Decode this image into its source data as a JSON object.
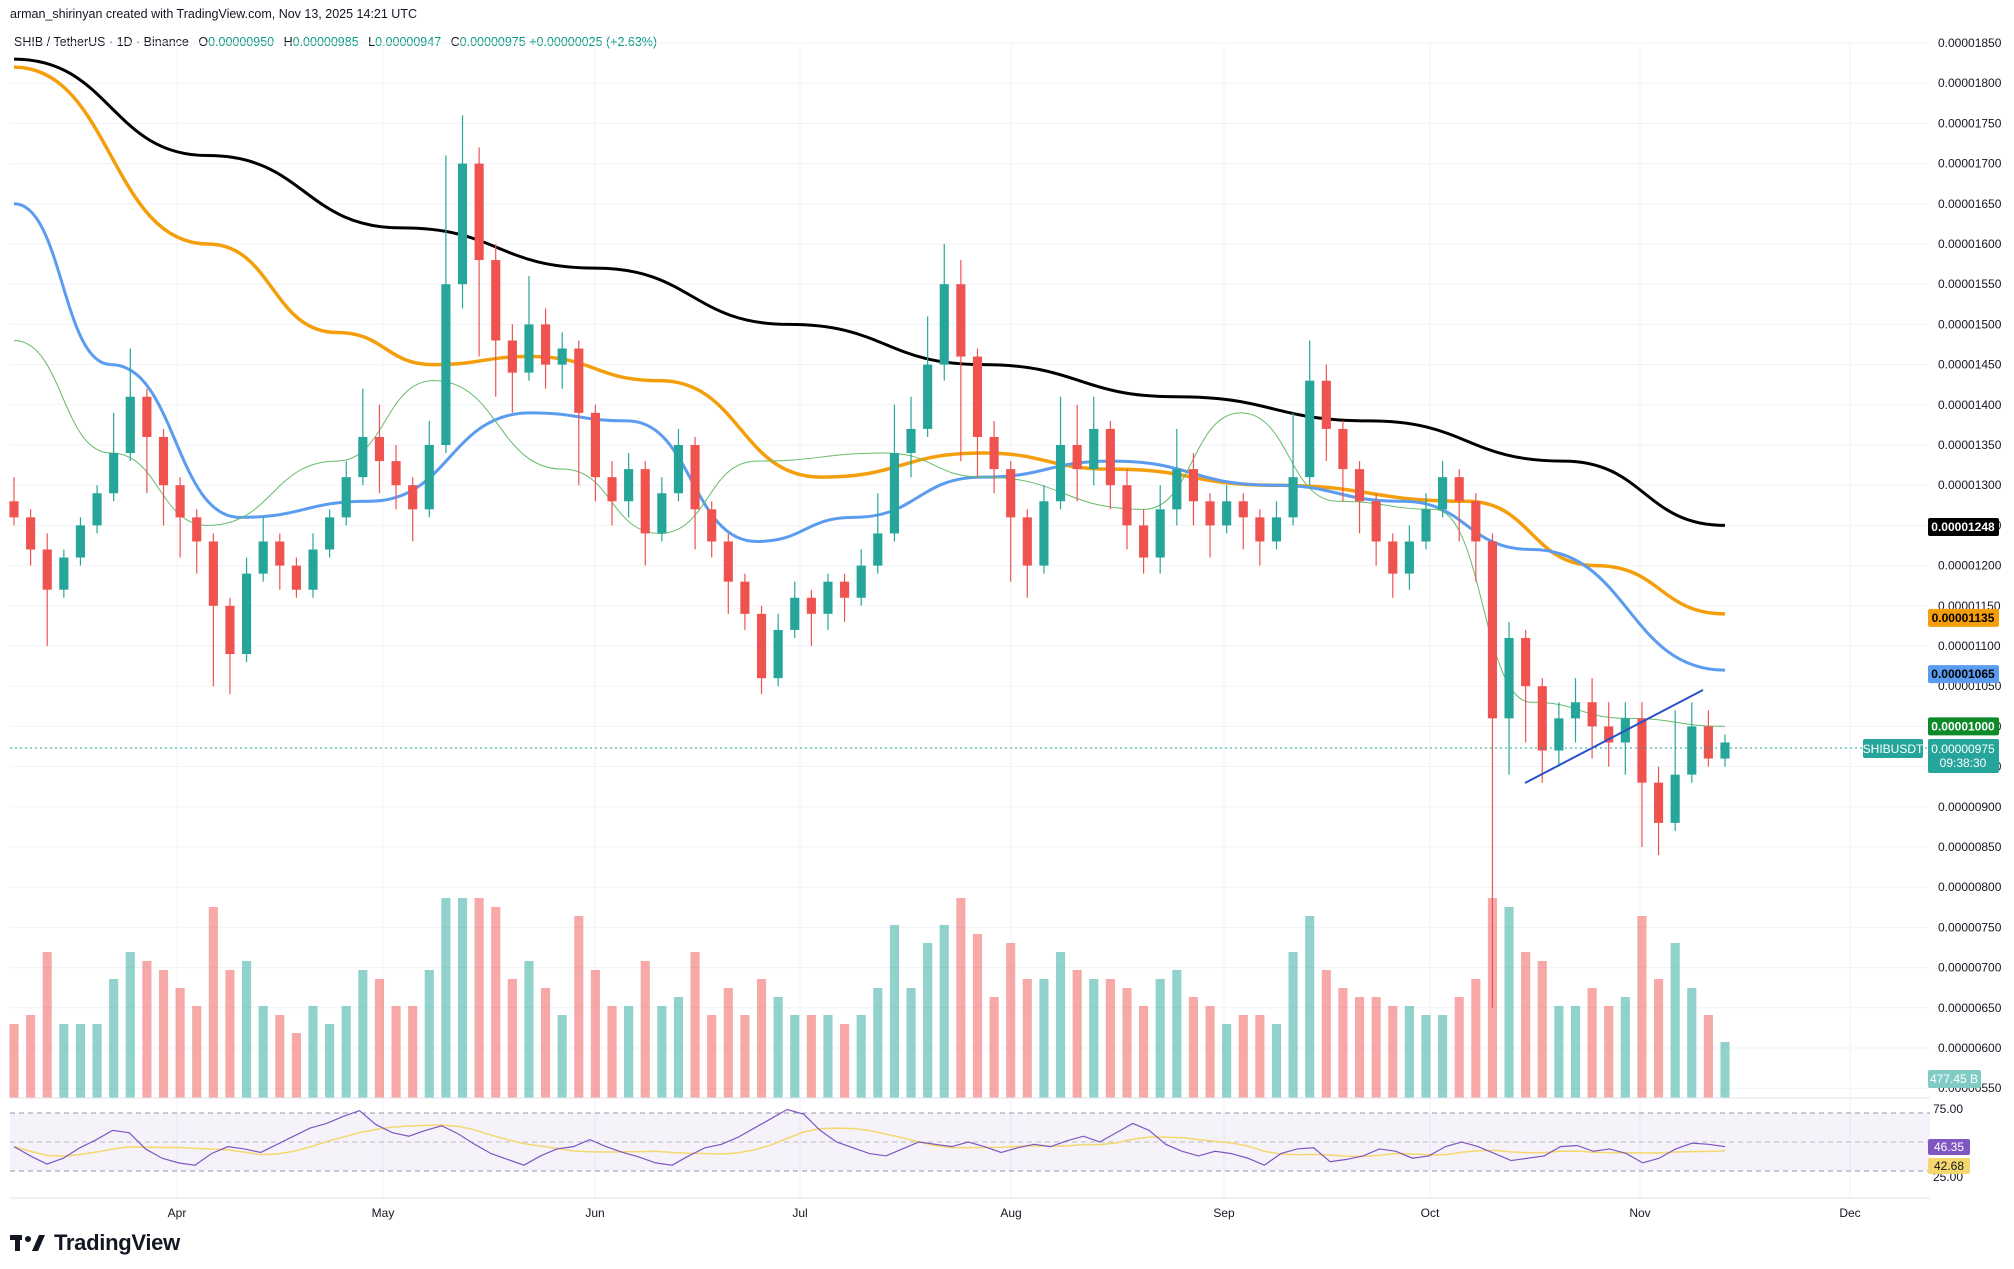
{
  "header": {
    "author": "arman_shirinyan",
    "created_text": "created with TradingView.com,",
    "timestamp": "Nov 13, 2025 14:21 UTC"
  },
  "legend": {
    "symbol": "SHIB / TetherUS · 1D · Binance",
    "open_label": "O",
    "open": "0.00000950",
    "high_label": "H",
    "high": "0.00000985",
    "low_label": "L",
    "low": "0.00000947",
    "close_label": "C",
    "close": "0.00000975",
    "change": "+0.00000025 (+2.63%)"
  },
  "price_labels": [
    {
      "value": "0.00001248",
      "color": "#000000",
      "text_color": "#ffffff"
    },
    {
      "value": "0.00001135",
      "color": "#f59e0b",
      "text_color": "#000000"
    },
    {
      "value": "0.00001065",
      "color": "#5b9cf0",
      "text_color": "#000000"
    },
    {
      "value": "0.00001000",
      "color": "#0d8a28",
      "text_color": "#ffffff"
    }
  ],
  "symbol_tag": "SHIBUSDT",
  "current_price": "0.00000975",
  "countdown": "09:38:30",
  "volume_label": "477.45 B",
  "rsi": {
    "value": "46.35",
    "ma": "42.68",
    "upper": "75.00",
    "lower": "25.00"
  },
  "brand": "TradingView",
  "colors": {
    "up": "#26a69a",
    "down": "#ef5350",
    "ma200": "#000000",
    "ma100": "#f59e0b",
    "ma50": "#5b9cf0",
    "ma20": "#66bb6a",
    "rsi": "#7e57c2",
    "rsi_ma": "#f5d76e",
    "trendline": "#2950c8"
  },
  "chart_data": {
    "type": "candlestick",
    "yaxis_ticks": [
      "0.00001850",
      "0.00001800",
      "0.00001750",
      "0.00001700",
      "0.00001650",
      "0.00001600",
      "0.00001550",
      "0.00001500",
      "0.00001450",
      "0.00001400",
      "0.00001350",
      "0.00001300",
      "0.00001250",
      "0.00001200",
      "0.00001150",
      "0.00001100",
      "0.00001050",
      "0.00001000",
      "0.00000950",
      "0.00000900",
      "0.00000850",
      "0.00000800",
      "0.00000750",
      "0.00000700",
      "0.00000650",
      "0.00000600",
      "0.00000550"
    ],
    "xaxis_ticks": [
      "Apr",
      "May",
      "Jun",
      "Jul",
      "Aug",
      "Sep",
      "Oct",
      "Nov",
      "Dec"
    ],
    "ylim": [
      5.5e-06,
      1.86e-05
    ],
    "moving_averages": [
      {
        "color": "#000000",
        "points": [
          [
            0,
            1.83e-05
          ],
          [
            30,
            1.71e-05
          ],
          [
            60,
            1.62e-05
          ],
          [
            90,
            1.57e-05
          ],
          [
            120,
            1.5e-05
          ],
          [
            150,
            1.45e-05
          ],
          [
            180,
            1.41e-05
          ],
          [
            210,
            1.38e-05
          ],
          [
            240,
            1.33e-05
          ],
          [
            265,
            1.25e-05
          ]
        ]
      },
      {
        "color": "#f59e0b",
        "points": [
          [
            0,
            1.82e-05
          ],
          [
            30,
            1.6e-05
          ],
          [
            50,
            1.49e-05
          ],
          [
            65,
            1.45e-05
          ],
          [
            80,
            1.46e-05
          ],
          [
            100,
            1.43e-05
          ],
          [
            125,
            1.31e-05
          ],
          [
            150,
            1.34e-05
          ],
          [
            170,
            1.32e-05
          ],
          [
            195,
            1.3e-05
          ],
          [
            225,
            1.28e-05
          ],
          [
            245,
            1.2e-05
          ],
          [
            265,
            1.14e-05
          ]
        ]
      },
      {
        "color": "#5b9cf0",
        "points": [
          [
            0,
            1.65e-05
          ],
          [
            15,
            1.45e-05
          ],
          [
            35,
            1.26e-05
          ],
          [
            55,
            1.28e-05
          ],
          [
            80,
            1.39e-05
          ],
          [
            95,
            1.38e-05
          ],
          [
            115,
            1.23e-05
          ],
          [
            130,
            1.26e-05
          ],
          [
            150,
            1.31e-05
          ],
          [
            170,
            1.33e-05
          ],
          [
            195,
            1.3e-05
          ],
          [
            215,
            1.28e-05
          ],
          [
            235,
            1.22e-05
          ],
          [
            265,
            1.07e-05
          ]
        ]
      },
      {
        "color": "#66bb6a",
        "points": [
          [
            0,
            1.48e-05
          ],
          [
            15,
            1.34e-05
          ],
          [
            30,
            1.25e-05
          ],
          [
            50,
            1.33e-05
          ],
          [
            65,
            1.43e-05
          ],
          [
            85,
            1.32e-05
          ],
          [
            100,
            1.24e-05
          ],
          [
            115,
            1.33e-05
          ],
          [
            135,
            1.34e-05
          ],
          [
            150,
            1.31e-05
          ],
          [
            175,
            1.27e-05
          ],
          [
            190,
            1.39e-05
          ],
          [
            205,
            1.28e-05
          ],
          [
            220,
            1.27e-05
          ],
          [
            235,
            1.03e-05
          ],
          [
            250,
            1.01e-05
          ],
          [
            265,
            1e-05
          ]
        ]
      }
    ],
    "candles": [
      [
        1.28e-05,
        1.26e-05,
        1.31e-05,
        1.25e-05
      ],
      [
        1.26e-05,
        1.22e-05,
        1.27e-05,
        1.2e-05
      ],
      [
        1.22e-05,
        1.17e-05,
        1.24e-05,
        1.1e-05
      ],
      [
        1.17e-05,
        1.21e-05,
        1.22e-05,
        1.16e-05
      ],
      [
        1.21e-05,
        1.25e-05,
        1.26e-05,
        1.2e-05
      ],
      [
        1.25e-05,
        1.29e-05,
        1.3e-05,
        1.24e-05
      ],
      [
        1.29e-05,
        1.34e-05,
        1.39e-05,
        1.28e-05
      ],
      [
        1.34e-05,
        1.41e-05,
        1.47e-05,
        1.33e-05
      ],
      [
        1.41e-05,
        1.36e-05,
        1.42e-05,
        1.29e-05
      ],
      [
        1.36e-05,
        1.3e-05,
        1.37e-05,
        1.25e-05
      ],
      [
        1.3e-05,
        1.26e-05,
        1.31e-05,
        1.21e-05
      ],
      [
        1.26e-05,
        1.23e-05,
        1.27e-05,
        1.19e-05
      ],
      [
        1.23e-05,
        1.15e-05,
        1.24e-05,
        1.05e-05
      ],
      [
        1.15e-05,
        1.09e-05,
        1.16e-05,
        1.04e-05
      ],
      [
        1.09e-05,
        1.19e-05,
        1.21e-05,
        1.08e-05
      ],
      [
        1.19e-05,
        1.23e-05,
        1.26e-05,
        1.18e-05
      ],
      [
        1.23e-05,
        1.2e-05,
        1.24e-05,
        1.17e-05
      ],
      [
        1.2e-05,
        1.17e-05,
        1.21e-05,
        1.16e-05
      ],
      [
        1.17e-05,
        1.22e-05,
        1.24e-05,
        1.16e-05
      ],
      [
        1.22e-05,
        1.26e-05,
        1.27e-05,
        1.21e-05
      ],
      [
        1.26e-05,
        1.31e-05,
        1.33e-05,
        1.25e-05
      ],
      [
        1.31e-05,
        1.36e-05,
        1.42e-05,
        1.3e-05
      ],
      [
        1.36e-05,
        1.33e-05,
        1.4e-05,
        1.29e-05
      ],
      [
        1.33e-05,
        1.3e-05,
        1.35e-05,
        1.27e-05
      ],
      [
        1.3e-05,
        1.27e-05,
        1.31e-05,
        1.23e-05
      ],
      [
        1.27e-05,
        1.35e-05,
        1.38e-05,
        1.26e-05
      ],
      [
        1.35e-05,
        1.55e-05,
        1.71e-05,
        1.34e-05
      ],
      [
        1.55e-05,
        1.7e-05,
        1.76e-05,
        1.52e-05
      ],
      [
        1.7e-05,
        1.58e-05,
        1.72e-05,
        1.46e-05
      ],
      [
        1.58e-05,
        1.48e-05,
        1.6e-05,
        1.41e-05
      ],
      [
        1.48e-05,
        1.44e-05,
        1.5e-05,
        1.39e-05
      ],
      [
        1.44e-05,
        1.5e-05,
        1.56e-05,
        1.43e-05
      ],
      [
        1.5e-05,
        1.45e-05,
        1.52e-05,
        1.42e-05
      ],
      [
        1.45e-05,
        1.47e-05,
        1.49e-05,
        1.42e-05
      ],
      [
        1.47e-05,
        1.39e-05,
        1.48e-05,
        1.3e-05
      ],
      [
        1.39e-05,
        1.31e-05,
        1.4e-05,
        1.28e-05
      ],
      [
        1.31e-05,
        1.28e-05,
        1.33e-05,
        1.25e-05
      ],
      [
        1.28e-05,
        1.32e-05,
        1.34e-05,
        1.26e-05
      ],
      [
        1.32e-05,
        1.24e-05,
        1.33e-05,
        1.2e-05
      ],
      [
        1.24e-05,
        1.29e-05,
        1.31e-05,
        1.23e-05
      ],
      [
        1.29e-05,
        1.35e-05,
        1.37e-05,
        1.28e-05
      ],
      [
        1.35e-05,
        1.27e-05,
        1.36e-05,
        1.22e-05
      ],
      [
        1.27e-05,
        1.23e-05,
        1.28e-05,
        1.21e-05
      ],
      [
        1.23e-05,
        1.18e-05,
        1.24e-05,
        1.14e-05
      ],
      [
        1.18e-05,
        1.14e-05,
        1.19e-05,
        1.12e-05
      ],
      [
        1.14e-05,
        1.06e-05,
        1.15e-05,
        1.04e-05
      ],
      [
        1.06e-05,
        1.12e-05,
        1.14e-05,
        1.05e-05
      ],
      [
        1.12e-05,
        1.16e-05,
        1.18e-05,
        1.11e-05
      ],
      [
        1.16e-05,
        1.14e-05,
        1.17e-05,
        1.1e-05
      ],
      [
        1.14e-05,
        1.18e-05,
        1.19e-05,
        1.12e-05
      ],
      [
        1.18e-05,
        1.16e-05,
        1.19e-05,
        1.13e-05
      ],
      [
        1.16e-05,
        1.2e-05,
        1.22e-05,
        1.15e-05
      ],
      [
        1.2e-05,
        1.24e-05,
        1.29e-05,
        1.19e-05
      ],
      [
        1.24e-05,
        1.34e-05,
        1.4e-05,
        1.23e-05
      ],
      [
        1.34e-05,
        1.37e-05,
        1.41e-05,
        1.31e-05
      ],
      [
        1.37e-05,
        1.45e-05,
        1.51e-05,
        1.36e-05
      ],
      [
        1.45e-05,
        1.55e-05,
        1.6e-05,
        1.43e-05
      ],
      [
        1.55e-05,
        1.46e-05,
        1.58e-05,
        1.33e-05
      ],
      [
        1.46e-05,
        1.36e-05,
        1.47e-05,
        1.31e-05
      ],
      [
        1.36e-05,
        1.32e-05,
        1.38e-05,
        1.29e-05
      ],
      [
        1.32e-05,
        1.26e-05,
        1.33e-05,
        1.18e-05
      ],
      [
        1.26e-05,
        1.2e-05,
        1.27e-05,
        1.16e-05
      ],
      [
        1.2e-05,
        1.28e-05,
        1.3e-05,
        1.19e-05
      ],
      [
        1.28e-05,
        1.35e-05,
        1.41e-05,
        1.27e-05
      ],
      [
        1.35e-05,
        1.32e-05,
        1.4e-05,
        1.28e-05
      ],
      [
        1.32e-05,
        1.37e-05,
        1.41e-05,
        1.3e-05
      ],
      [
        1.37e-05,
        1.3e-05,
        1.38e-05,
        1.27e-05
      ],
      [
        1.3e-05,
        1.25e-05,
        1.32e-05,
        1.22e-05
      ],
      [
        1.25e-05,
        1.21e-05,
        1.27e-05,
        1.19e-05
      ],
      [
        1.21e-05,
        1.27e-05,
        1.3e-05,
        1.19e-05
      ],
      [
        1.27e-05,
        1.32e-05,
        1.37e-05,
        1.25e-05
      ],
      [
        1.32e-05,
        1.28e-05,
        1.34e-05,
        1.25e-05
      ],
      [
        1.28e-05,
        1.25e-05,
        1.29e-05,
        1.21e-05
      ],
      [
        1.25e-05,
        1.28e-05,
        1.3e-05,
        1.24e-05
      ],
      [
        1.28e-05,
        1.26e-05,
        1.29e-05,
        1.22e-05
      ],
      [
        1.26e-05,
        1.23e-05,
        1.27e-05,
        1.2e-05
      ],
      [
        1.23e-05,
        1.26e-05,
        1.28e-05,
        1.22e-05
      ],
      [
        1.26e-05,
        1.31e-05,
        1.39e-05,
        1.25e-05
      ],
      [
        1.31e-05,
        1.43e-05,
        1.48e-05,
        1.3e-05
      ],
      [
        1.43e-05,
        1.37e-05,
        1.45e-05,
        1.33e-05
      ],
      [
        1.37e-05,
        1.32e-05,
        1.38e-05,
        1.28e-05
      ],
      [
        1.32e-05,
        1.28e-05,
        1.33e-05,
        1.24e-05
      ],
      [
        1.28e-05,
        1.23e-05,
        1.29e-05,
        1.2e-05
      ],
      [
        1.23e-05,
        1.19e-05,
        1.24e-05,
        1.16e-05
      ],
      [
        1.19e-05,
        1.23e-05,
        1.25e-05,
        1.17e-05
      ],
      [
        1.23e-05,
        1.27e-05,
        1.29e-05,
        1.22e-05
      ],
      [
        1.27e-05,
        1.31e-05,
        1.33e-05,
        1.26e-05
      ],
      [
        1.31e-05,
        1.28e-05,
        1.32e-05,
        1.23e-05
      ],
      [
        1.28e-05,
        1.23e-05,
        1.29e-05,
        1.18e-05
      ],
      [
        1.23e-05,
        1.01e-05,
        1.24e-05,
        6.5e-06
      ],
      [
        1.01e-05,
        1.11e-05,
        1.13e-05,
        9.4e-06
      ],
      [
        1.11e-05,
        1.05e-05,
        1.12e-05,
        9.8e-06
      ],
      [
        1.05e-05,
        9.7e-06,
        1.06e-05,
        9.3e-06
      ],
      [
        9.7e-06,
        1.01e-05,
        1.03e-05,
        9.5e-06
      ],
      [
        1.01e-05,
        1.03e-05,
        1.06e-05,
        9.8e-06
      ],
      [
        1.03e-05,
        1e-05,
        1.06e-05,
        9.6e-06
      ],
      [
        1e-05,
        9.8e-06,
        1.03e-05,
        9.5e-06
      ],
      [
        9.8e-06,
        1.01e-05,
        1.03e-05,
        9.4e-06
      ],
      [
        1.01e-05,
        9.3e-06,
        1.03e-05,
        8.5e-06
      ],
      [
        9.3e-06,
        8.8e-06,
        9.5e-06,
        8.4e-06
      ],
      [
        8.8e-06,
        9.4e-06,
        1.02e-05,
        8.7e-06
      ],
      [
        9.4e-06,
        1e-05,
        1.03e-05,
        9.3e-06
      ],
      [
        1e-05,
        9.6e-06,
        1.02e-05,
        9.5e-06
      ],
      [
        9.6e-06,
        9.8e-06,
        9.9e-06,
        9.5e-06
      ]
    ],
    "rsi": [
      46,
      38,
      31,
      36,
      45,
      52,
      60,
      58,
      44,
      36,
      32,
      30,
      40,
      46,
      44,
      41,
      48,
      55,
      62,
      66,
      72,
      77,
      65,
      58,
      55,
      60,
      64,
      57,
      48,
      40,
      35,
      30,
      38,
      44,
      46,
      52,
      46,
      41,
      37,
      32,
      30,
      38,
      45,
      48,
      54,
      62,
      70,
      78,
      74,
      60,
      50,
      45,
      40,
      38,
      44,
      50,
      48,
      46,
      50,
      46,
      41,
      45,
      48,
      46,
      51,
      55,
      50,
      58,
      66,
      60,
      48,
      42,
      38,
      42,
      40,
      36,
      30,
      40,
      44,
      45,
      33,
      35,
      38,
      44,
      42,
      36,
      38,
      46,
      50,
      46,
      40,
      34,
      36,
      38,
      46,
      47,
      42,
      44,
      40,
      32,
      36,
      44,
      49,
      48,
      46
    ]
  }
}
